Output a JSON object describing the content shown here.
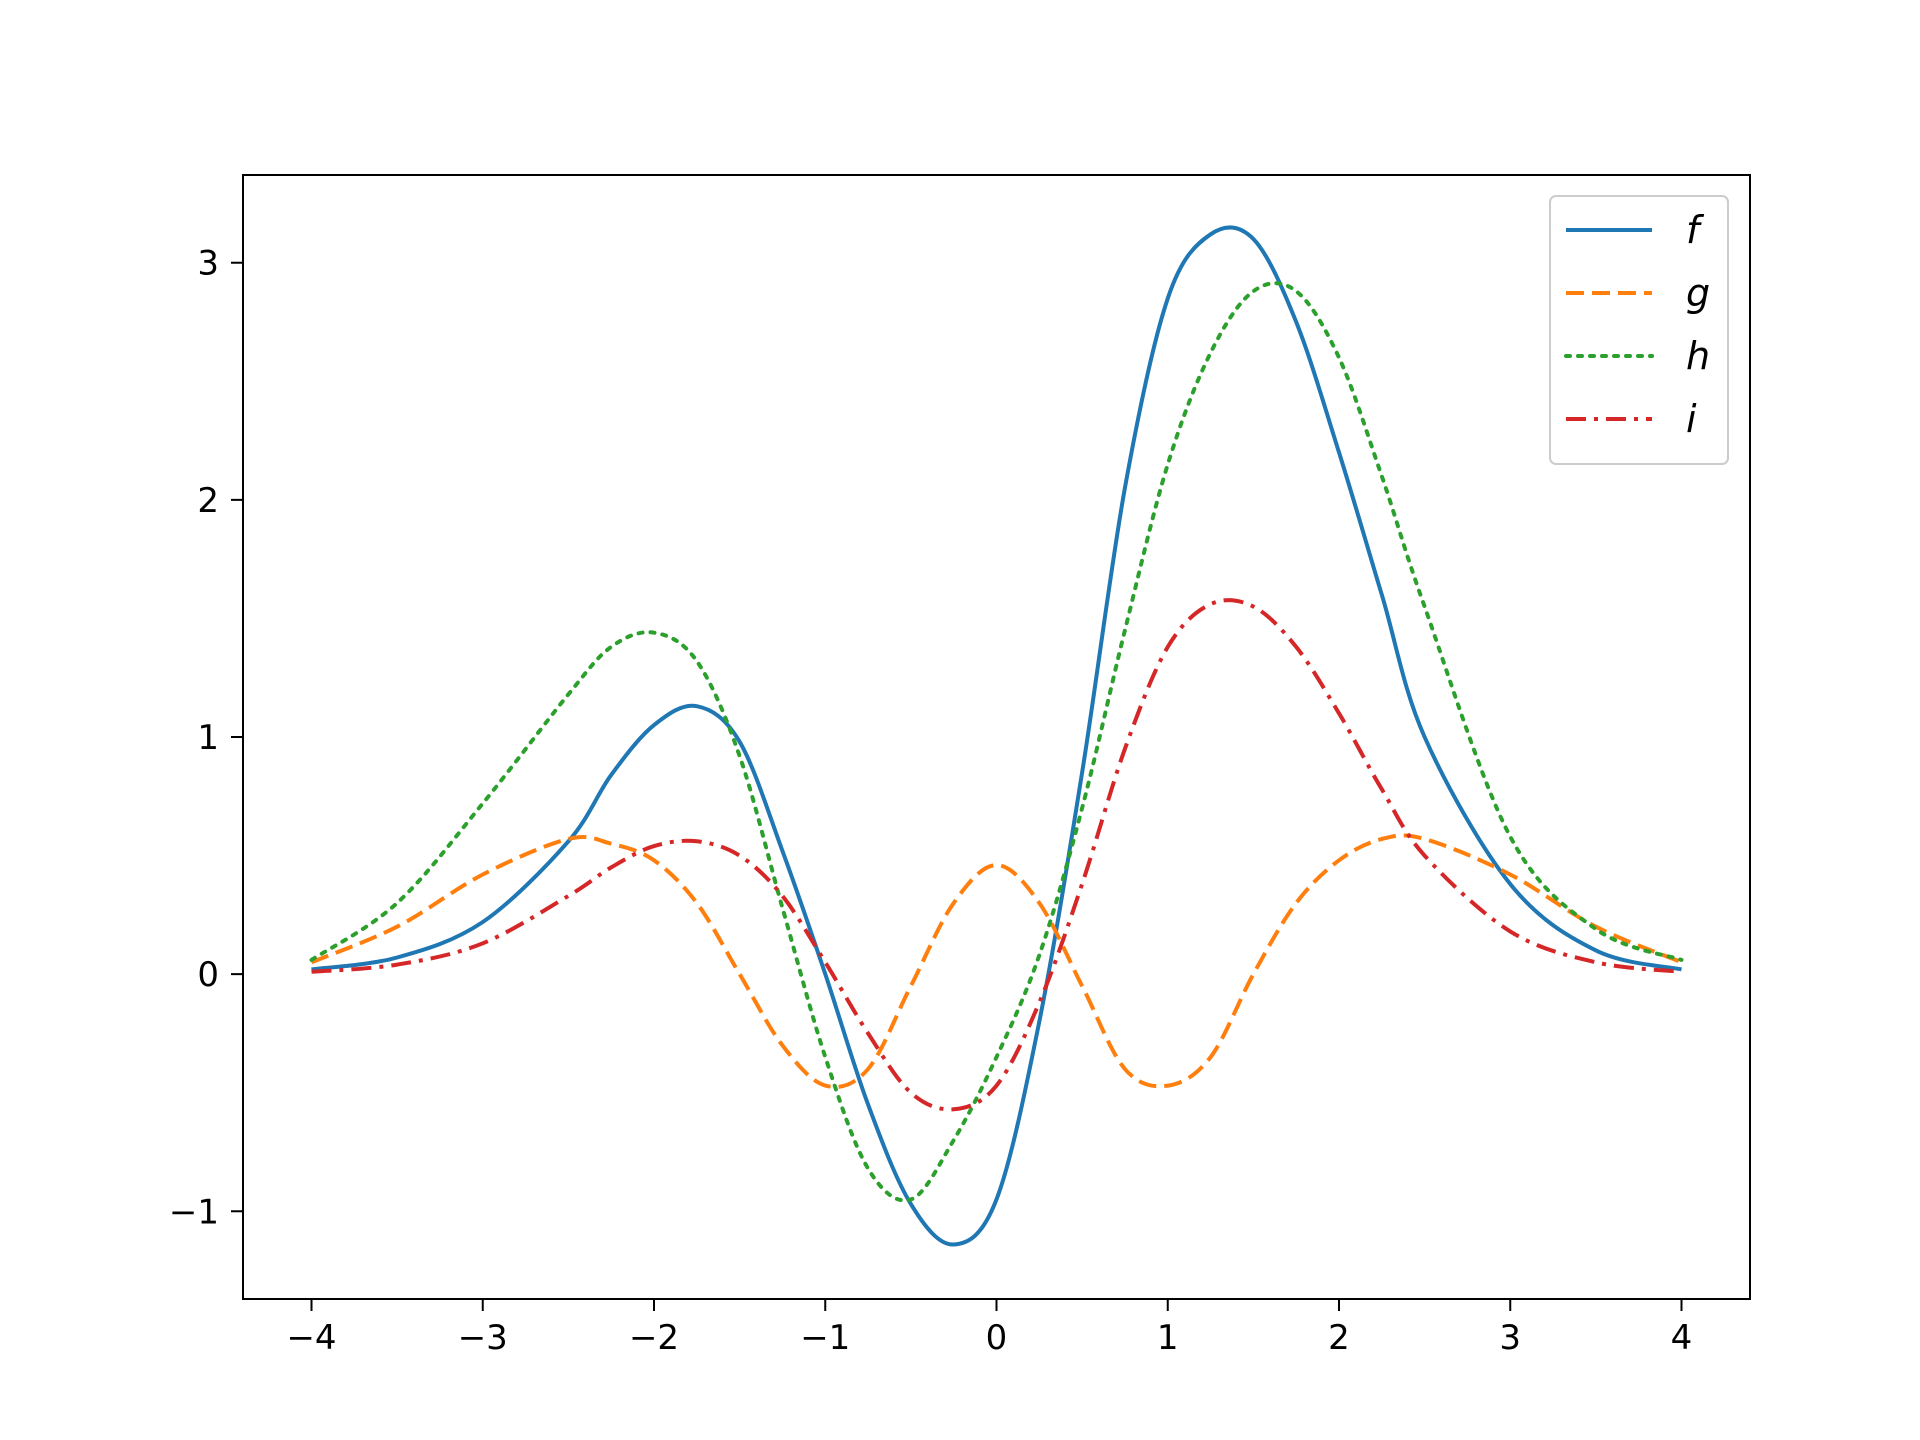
{
  "chart_data": {
    "type": "line",
    "title": "",
    "xlabel": "",
    "ylabel": "",
    "xlim": [
      -4.4,
      4.4
    ],
    "ylim": [
      -1.37,
      3.37
    ],
    "x_ticks": [
      -4,
      -3,
      -2,
      -1,
      0,
      1,
      2,
      3,
      4
    ],
    "x_tick_labels": [
      "−4",
      "−3",
      "−2",
      "−1",
      "0",
      "1",
      "2",
      "3",
      "4"
    ],
    "y_ticks": [
      -1,
      0,
      1,
      2,
      3
    ],
    "y_tick_labels": [
      "−1",
      "0",
      "1",
      "2",
      "3"
    ],
    "grid": false,
    "legend": "top-right",
    "x": [
      -4.0,
      -3.5,
      -3.0,
      -2.5,
      -2.25,
      -2.0,
      -1.75,
      -1.5,
      -1.25,
      -1.0,
      -0.75,
      -0.5,
      -0.25,
      0.0,
      0.25,
      0.5,
      0.75,
      1.0,
      1.25,
      1.5,
      1.75,
      2.0,
      2.25,
      2.5,
      3.0,
      3.5,
      4.0
    ],
    "series": [
      {
        "name": "f",
        "color": "#1f77b4",
        "dash": "solid",
        "values": [
          0.02,
          0.07,
          0.22,
          0.56,
          0.84,
          1.05,
          1.13,
          0.98,
          0.52,
          0.0,
          -0.55,
          -0.97,
          -1.14,
          -0.95,
          -0.2,
          0.85,
          2.05,
          2.85,
          3.12,
          3.1,
          2.75,
          2.2,
          1.6,
          1.0,
          0.38,
          0.1,
          0.02
        ]
      },
      {
        "name": "g",
        "color": "#ff7f0e",
        "dash": "dashed",
        "values": [
          0.05,
          0.2,
          0.42,
          0.57,
          0.55,
          0.48,
          0.3,
          0.0,
          -0.3,
          -0.47,
          -0.4,
          -0.05,
          0.3,
          0.46,
          0.3,
          -0.05,
          -0.4,
          -0.47,
          -0.35,
          0.0,
          0.3,
          0.48,
          0.57,
          0.57,
          0.42,
          0.2,
          0.05
        ]
      },
      {
        "name": "h",
        "color": "#2ca02c",
        "dash": "dotted",
        "values": [
          0.06,
          0.3,
          0.72,
          1.18,
          1.38,
          1.44,
          1.32,
          0.92,
          0.28,
          -0.35,
          -0.82,
          -0.95,
          -0.7,
          -0.35,
          0.08,
          0.7,
          1.45,
          2.15,
          2.62,
          2.88,
          2.88,
          2.6,
          2.1,
          1.55,
          0.58,
          0.19,
          0.06
        ]
      },
      {
        "name": "i",
        "color": "#d62728",
        "dash": "dashdot",
        "values": [
          0.01,
          0.04,
          0.13,
          0.33,
          0.45,
          0.54,
          0.56,
          0.5,
          0.33,
          0.05,
          -0.25,
          -0.5,
          -0.57,
          -0.47,
          -0.12,
          0.38,
          0.95,
          1.38,
          1.56,
          1.55,
          1.38,
          1.1,
          0.78,
          0.5,
          0.18,
          0.05,
          0.01
        ]
      }
    ]
  }
}
